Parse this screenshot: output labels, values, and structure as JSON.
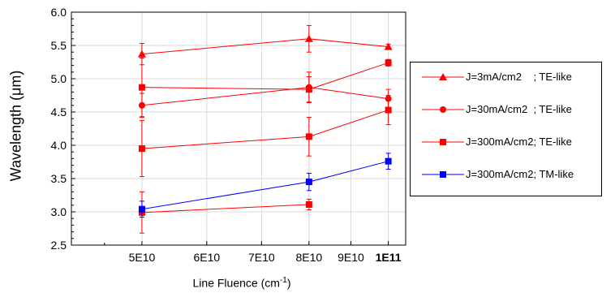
{
  "chart_data": {
    "type": "line",
    "xlabel_text": "Line Fluence (cm",
    "xlabel_sup": "-1",
    "xlabel_end": ")",
    "ylabel": "Wavelength (μm)",
    "xscale": "log",
    "xlim": [
      41000000000.0,
      105000000000.0
    ],
    "ylim": [
      2.5,
      6.0
    ],
    "x_ticks": [
      {
        "value": 50000000000.0,
        "label": "5E10",
        "bold": false
      },
      {
        "value": 60000000000.0,
        "label": "6E10",
        "bold": false
      },
      {
        "value": 70000000000.0,
        "label": "7E10",
        "bold": false
      },
      {
        "value": 80000000000.0,
        "label": "8E10",
        "bold": false
      },
      {
        "value": 90000000000.0,
        "label": "9E10",
        "bold": false
      },
      {
        "value": 100000000000.0,
        "label": "1E11",
        "bold": true
      }
    ],
    "y_ticks": [
      {
        "value": 2.5,
        "label": "2.5"
      },
      {
        "value": 3.0,
        "label": "3.0"
      },
      {
        "value": 3.5,
        "label": "3.5"
      },
      {
        "value": 4.0,
        "label": "4.0"
      },
      {
        "value": 4.5,
        "label": "4.5"
      },
      {
        "value": 5.0,
        "label": "5.0"
      },
      {
        "value": 5.5,
        "label": "5.5"
      },
      {
        "value": 6.0,
        "label": "6.0"
      }
    ],
    "grid": true,
    "legend_position": "right",
    "series": [
      {
        "name": "J=3mA/cm2    ; TE-like",
        "color": "#ff0000",
        "marker": "triangle",
        "points": [
          {
            "x": 50000000000.0,
            "y": 5.37,
            "err": 0.16
          },
          {
            "x": 80000000000.0,
            "y": 5.6,
            "err": 0.2
          },
          {
            "x": 100000000000.0,
            "y": 5.48,
            "err": 0.04
          }
        ]
      },
      {
        "name": "J=30mA/cm2  ; TE-like",
        "color": "#ff0000",
        "marker": "circle",
        "points": [
          {
            "x": 50000000000.0,
            "y": 4.6,
            "err": 0.18
          },
          {
            "x": 80000000000.0,
            "y": 4.87,
            "err": 0.23
          },
          {
            "x": 100000000000.0,
            "y": 4.7,
            "err": 0.14
          }
        ]
      },
      {
        "name": "J=300mA/cm2; TE-like",
        "color": "#ff0000",
        "marker": "square",
        "points": [
          {
            "x": 50000000000.0,
            "y": 4.87,
            "err": 0.44
          },
          {
            "x": 80000000000.0,
            "y": 4.84,
            "err": 0.19
          },
          {
            "x": 100000000000.0,
            "y": 5.24,
            "err": 0.05
          }
        ]
      },
      {
        "name": "",
        "color": "#ff0000",
        "marker": "square",
        "points": [
          {
            "x": 50000000000.0,
            "y": 3.95,
            "err": 0.42
          },
          {
            "x": 80000000000.0,
            "y": 4.13,
            "err": 0.29
          },
          {
            "x": 100000000000.0,
            "y": 4.53,
            "err": 0.22
          }
        ]
      },
      {
        "name": "",
        "color": "#ff0000",
        "marker": "square",
        "points": [
          {
            "x": 50000000000.0,
            "y": 2.99,
            "err": 0.31
          },
          {
            "x": 80000000000.0,
            "y": 3.11,
            "err": 0.08
          }
        ]
      },
      {
        "name": "J=300mA/cm2; TM-like",
        "color": "#0000ff",
        "marker": "square",
        "points": [
          {
            "x": 50000000000.0,
            "y": 3.04,
            "err": 0.12
          },
          {
            "x": 80000000000.0,
            "y": 3.45,
            "err": 0.13
          },
          {
            "x": 100000000000.0,
            "y": 3.76,
            "err": 0.12
          }
        ]
      }
    ]
  }
}
